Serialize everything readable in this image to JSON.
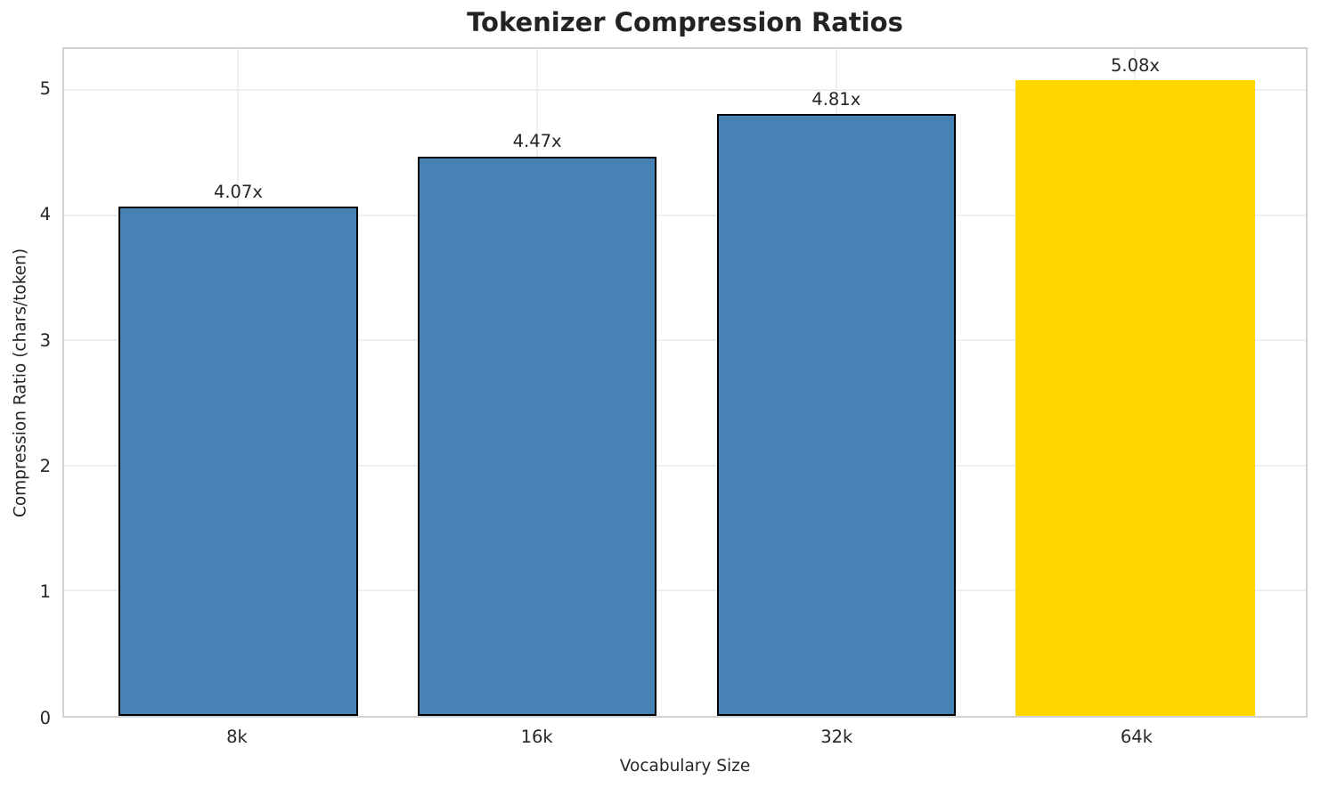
{
  "chart_data": {
    "type": "bar",
    "title": "Tokenizer Compression Ratios",
    "xlabel": "Vocabulary Size",
    "ylabel": "Compression Ratio (chars/token)",
    "categories": [
      "8k",
      "16k",
      "32k",
      "64k"
    ],
    "values": [
      4.07,
      4.47,
      4.81,
      5.08
    ],
    "bar_labels": [
      "4.07x",
      "4.47x",
      "4.81x",
      "5.08x"
    ],
    "yticks": [
      0,
      1,
      2,
      3,
      4,
      5
    ],
    "ylim": [
      0,
      5.33
    ],
    "bar_colors": [
      "#4682B4",
      "#4682B4",
      "#4682B4",
      "#FFD700"
    ],
    "bar_edge_colors": [
      "#000000",
      "#000000",
      "#000000",
      "none"
    ],
    "base_color": "#4682B4",
    "highlight_color": "#FFD700",
    "grid": true,
    "grid_color": "#efefef",
    "spine_color": "#d2d2d2",
    "legend": null
  }
}
